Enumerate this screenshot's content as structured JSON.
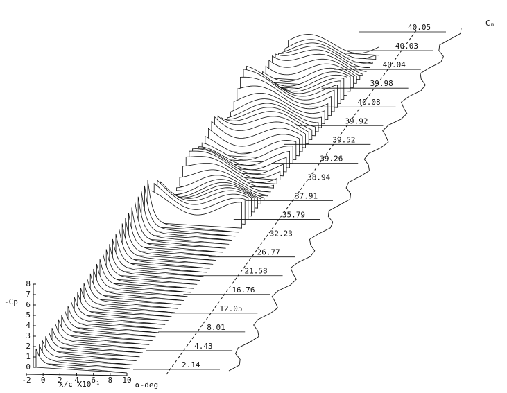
{
  "chart_data": {
    "type": "waterfall",
    "ylabel": "-Cp",
    "ylim": [
      0,
      8
    ],
    "yticks": [
      0,
      1,
      2,
      3,
      4,
      5,
      6,
      7,
      8
    ],
    "xlabel": "x/c X10⁻¹",
    "xlim": [
      -2,
      10
    ],
    "xticks": [
      -2,
      0,
      2,
      4,
      6,
      8,
      10
    ],
    "zlabel": "α-deg",
    "rlabel": "Cₘ",
    "angles": [
      "2.14",
      "4.43",
      "8.01",
      "12.05",
      "16.76",
      "21.58",
      "26.77",
      "32.23",
      "35.79",
      "37.91",
      "38.94",
      "39.26",
      "39.52",
      "39.92",
      "40.08",
      "39.98",
      "40.04",
      "40.03",
      "40.05"
    ]
  }
}
